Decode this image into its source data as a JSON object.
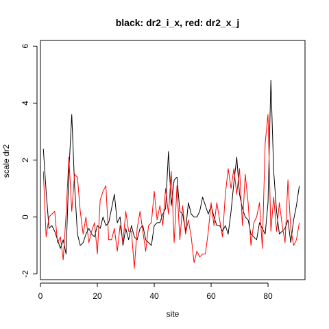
{
  "chart_data": {
    "type": "line",
    "title": "black: dr2_i_x, red: dr2_x_j",
    "xlabel": "site",
    "ylabel": "scale dr2",
    "xlim": [
      0,
      93
    ],
    "ylim": [
      -2.2,
      6.2
    ],
    "xticks": [
      "0",
      "20",
      "40",
      "60",
      "80"
    ],
    "yticks": [
      "-2",
      "0",
      "2",
      "4",
      "6"
    ],
    "grid": false,
    "legend": "none",
    "series": [
      {
        "color": "#000000",
        "x": [
          1,
          2,
          3,
          4,
          5,
          6,
          7,
          8,
          9,
          10,
          11,
          12,
          13,
          14,
          15,
          16,
          17,
          18,
          19,
          20,
          21,
          22,
          23,
          24,
          25,
          26,
          27,
          28,
          29,
          30,
          31,
          32,
          33,
          34,
          35,
          36,
          37,
          38,
          39,
          40,
          41,
          42,
          43,
          44,
          45,
          46,
          47,
          48,
          49,
          50,
          51,
          52,
          53,
          54,
          55,
          56,
          57,
          58,
          59,
          60,
          61,
          62,
          63,
          64,
          65,
          66,
          67,
          68,
          69,
          70,
          71,
          72,
          73,
          74,
          75,
          76,
          77,
          78,
          79,
          80,
          81,
          82,
          83,
          84,
          85,
          86,
          87,
          88,
          89,
          90,
          91
        ],
        "y": [
          2.4,
          0.9,
          -0.4,
          -0.3,
          -0.5,
          -0.8,
          -1.1,
          -0.8,
          -1.3,
          1.6,
          3.6,
          1.1,
          -0.6,
          -1.0,
          -0.9,
          -0.6,
          -0.4,
          -0.6,
          -0.7,
          -0.3,
          -0.4,
          0.0,
          -0.3,
          -0.2,
          0.3,
          0.8,
          -0.2,
          0.0,
          -1.0,
          -0.4,
          -0.8,
          -0.3,
          -0.7,
          -0.8,
          -0.4,
          -0.3,
          -0.8,
          -0.9,
          -1.0,
          -0.3,
          -0.2,
          -0.2,
          0.1,
          0.3,
          2.3,
          0.4,
          1.3,
          1.4,
          0.2,
          0.1,
          -0.5,
          0.5,
          0.1,
          0.0,
          0.0,
          0.2,
          0.7,
          0.4,
          0.1,
          0.4,
          0.0,
          -0.3,
          -0.3,
          -0.5,
          -0.3,
          -0.6,
          0.2,
          1.2,
          2.1,
          0.8,
          0.3,
          0.0,
          -0.1,
          -0.6,
          -0.7,
          -0.8,
          -0.2,
          -0.4,
          -0.6,
          0.5,
          4.8,
          1.6,
          0.2,
          -0.6,
          -0.5,
          -0.4,
          -0.1,
          -0.9,
          -0.1,
          0.4,
          1.1
        ]
      },
      {
        "color": "#ff0000",
        "x": [
          1,
          2,
          3,
          4,
          5,
          6,
          7,
          8,
          9,
          10,
          11,
          12,
          13,
          14,
          15,
          16,
          17,
          18,
          19,
          20,
          21,
          22,
          23,
          24,
          25,
          26,
          27,
          28,
          29,
          30,
          31,
          32,
          33,
          34,
          35,
          36,
          37,
          38,
          39,
          40,
          41,
          42,
          43,
          44,
          45,
          46,
          47,
          48,
          49,
          50,
          51,
          52,
          53,
          54,
          55,
          56,
          57,
          58,
          59,
          60,
          61,
          62,
          63,
          64,
          65,
          66,
          67,
          68,
          69,
          70,
          71,
          72,
          73,
          74,
          75,
          76,
          77,
          78,
          79,
          80,
          81,
          82,
          83,
          84,
          85,
          86,
          87,
          88,
          89,
          90,
          91
        ],
        "y": [
          1.6,
          -0.7,
          0.0,
          0.1,
          0.2,
          -0.9,
          -0.7,
          -1.5,
          0.1,
          2.1,
          0.2,
          1.5,
          1.4,
          0.2,
          -0.6,
          0.0,
          -0.9,
          -0.5,
          -0.2,
          -1.3,
          0.6,
          0.9,
          1.1,
          -0.8,
          -0.8,
          -0.4,
          -1.2,
          -0.3,
          -0.9,
          0.2,
          -0.5,
          -0.5,
          -1.8,
          -0.4,
          0.2,
          -0.5,
          -1.2,
          -0.3,
          -0.2,
          0.9,
          -0.1,
          0.4,
          -0.3,
          1.0,
          0.1,
          1.6,
          -0.9,
          1.1,
          -0.8,
          0.4,
          -0.6,
          -0.1,
          -0.7,
          -1.6,
          -1.2,
          -1.4,
          -1.3,
          -1.3,
          -0.5,
          0.5,
          -0.3,
          0.5,
          -0.1,
          -0.7,
          0.8,
          1.7,
          1.0,
          1.7,
          0.8,
          1.7,
          -0.3,
          1.5,
          0.5,
          -1.0,
          -0.2,
          0.0,
          0.5,
          -1.1,
          2.6,
          3.6,
          -0.5,
          0.7,
          -0.5,
          0.5,
          -0.3,
          -0.9,
          1.3,
          -0.4,
          -1.0,
          -0.8,
          -0.2
        ]
      }
    ]
  }
}
